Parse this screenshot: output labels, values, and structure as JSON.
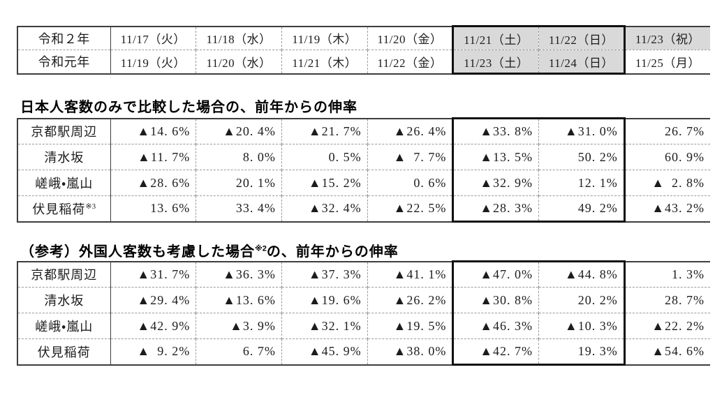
{
  "date_table": {
    "rows": [
      {
        "label": "令和２年",
        "dates": [
          "11/17（火）",
          "11/18（水）",
          "11/19（木）",
          "11/20（金）",
          "11/21（土）",
          "11/22（日）",
          "11/23（祝）"
        ]
      },
      {
        "label": "令和元年",
        "dates": [
          "11/19（火）",
          "11/20（水）",
          "11/21（木）",
          "11/22（金）",
          "11/23（土）",
          "11/24（日）",
          "11/25（月）"
        ]
      }
    ]
  },
  "section1": {
    "title": "日本人客数のみで比較した場合の、前年からの伸率",
    "rows": [
      {
        "label": "京都駅周辺",
        "values": [
          "▲14. 6%",
          "▲20. 4%",
          "▲21. 7%",
          "▲26. 4%",
          "▲33. 8%",
          "▲31. 0%",
          "26. 7%"
        ]
      },
      {
        "label": "清水坂",
        "values": [
          "▲11. 7%",
          "8. 0%",
          "0. 5%",
          "▲ 7. 7%",
          "▲13. 5%",
          "50. 2%",
          "60. 9%"
        ]
      },
      {
        "label": "嵯峨・嵐山",
        "values": [
          "▲28. 6%",
          "20. 1%",
          "▲15. 2%",
          "0. 6%",
          "▲32. 9%",
          "12. 1%",
          "▲ 2. 8%"
        ]
      },
      {
        "label": "伏見稲荷",
        "label_note": "※3",
        "values": [
          "13. 6%",
          "33. 4%",
          "▲32. 4%",
          "▲22. 5%",
          "▲28. 3%",
          "49. 2%",
          "▲43. 2%"
        ]
      }
    ]
  },
  "section2": {
    "title_prefix": "（参考）外国人客数も考慮した場合",
    "title_note": "※2",
    "title_suffix": "の、前年からの伸率",
    "rows": [
      {
        "label": "京都駅周辺",
        "values": [
          "▲31. 7%",
          "▲36. 3%",
          "▲37. 3%",
          "▲41. 1%",
          "▲47. 0%",
          "▲44. 8%",
          "1. 3%"
        ]
      },
      {
        "label": "清水坂",
        "values": [
          "▲29. 4%",
          "▲13. 6%",
          "▲19. 6%",
          "▲26. 2%",
          "▲30. 8%",
          "20. 2%",
          "28. 7%"
        ]
      },
      {
        "label": "嵯峨・嵐山",
        "values": [
          "▲42. 9%",
          "▲3. 9%",
          "▲32. 1%",
          "▲19. 5%",
          "▲46. 3%",
          "▲10. 3%",
          "▲22. 2%"
        ]
      },
      {
        "label": "伏見稲荷",
        "values": [
          "▲ 9. 2%",
          "6. 7%",
          "▲45. 9%",
          "▲38. 0%",
          "▲42. 7%",
          "19. 3%",
          "▲54. 6%"
        ]
      }
    ]
  },
  "colors": {
    "highlight_bg": "#d9d9d9",
    "weekend_box_border": "#0f0f0f",
    "outer_border": "#3d3d3d",
    "dashed_border": "#999999",
    "text": "#1c1c1c"
  }
}
